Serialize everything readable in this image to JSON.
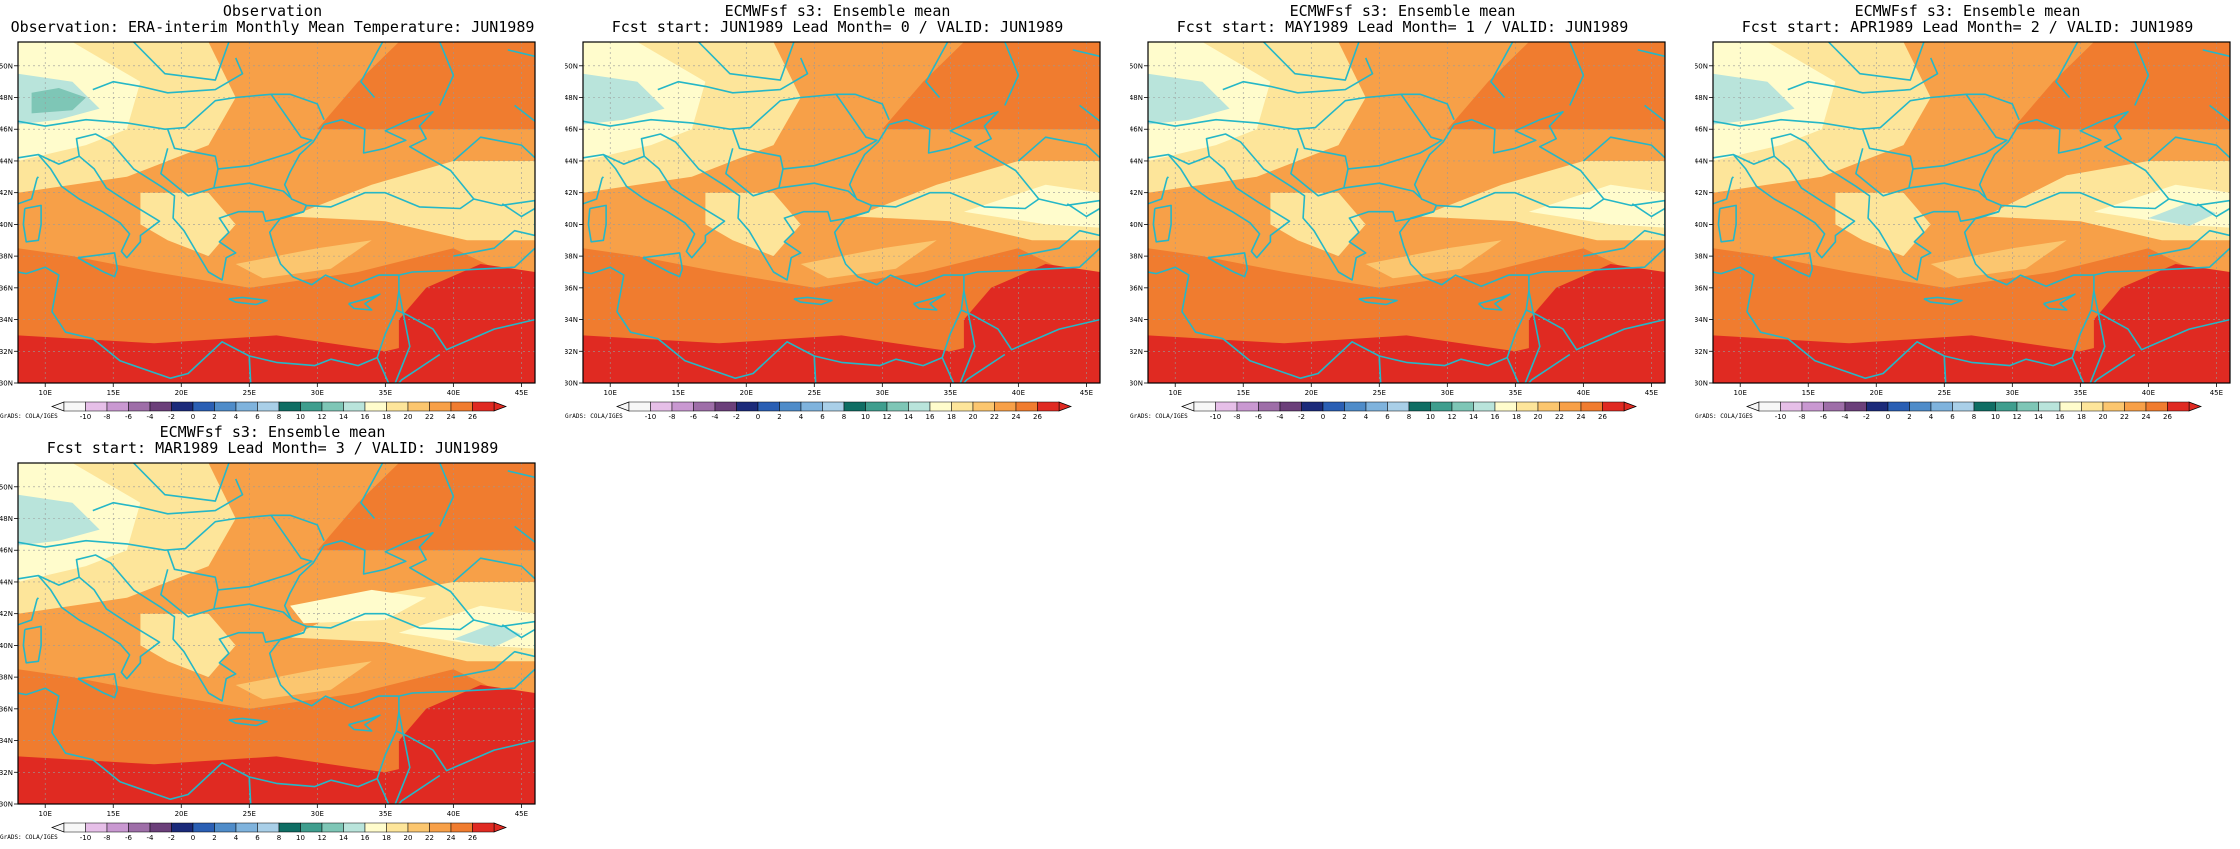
{
  "panels": [
    {
      "title1": "Observation",
      "title2": "Observation: ERA-interim Monthly Mean Temperature: JUN1989",
      "variant": 0
    },
    {
      "title1": "ECMWFsf s3: Ensemble mean",
      "title2": "Fcst start: JUN1989  Lead Month= 0 / VALID: JUN1989",
      "variant": 1
    },
    {
      "title1": "ECMWFsf s3: Ensemble mean",
      "title2": "Fcst start: MAY1989  Lead Month= 1 / VALID: JUN1989",
      "variant": 2
    },
    {
      "title1": "ECMWFsf s3: Ensemble mean",
      "title2": "Fcst start: APR1989  Lead Month= 2 / VALID: JUN1989",
      "variant": 3
    },
    {
      "title1": "ECMWFsf s3: Ensemble mean",
      "title2": "Fcst start: MAR1989  Lead Month= 3 / VALID: JUN1989",
      "variant": 4
    }
  ],
  "credit": "GrADS: COLA/IGES",
  "lon_labels": [
    "10E",
    "15E",
    "20E",
    "25E",
    "30E",
    "35E",
    "40E",
    "45E"
  ],
  "lat_labels": [
    "30N",
    "32N",
    "34N",
    "36N",
    "38N",
    "40N",
    "42N",
    "44N",
    "46N",
    "48N",
    "50N"
  ],
  "colorbar": {
    "labels": [
      "-10",
      "-8",
      "-6",
      "-4",
      "-2",
      "0",
      "2",
      "4",
      "6",
      "8",
      "10",
      "12",
      "14",
      "16",
      "18",
      "20",
      "22",
      "24",
      "26"
    ],
    "colors": [
      "#f7f7f7",
      "#e6bfe8",
      "#c998d1",
      "#9e6ea8",
      "#6b3f7a",
      "#1b2a7a",
      "#2a5fb4",
      "#4f8cc9",
      "#7fb3dd",
      "#a9cfe8",
      "#0f6e64",
      "#3f9e8e",
      "#7ec6b6",
      "#b9e4db",
      "#fffccc",
      "#fde59a",
      "#fbc66f",
      "#f7a048",
      "#f07c2f",
      "#e02a22"
    ]
  },
  "coastline_color": "#25b7c7"
}
